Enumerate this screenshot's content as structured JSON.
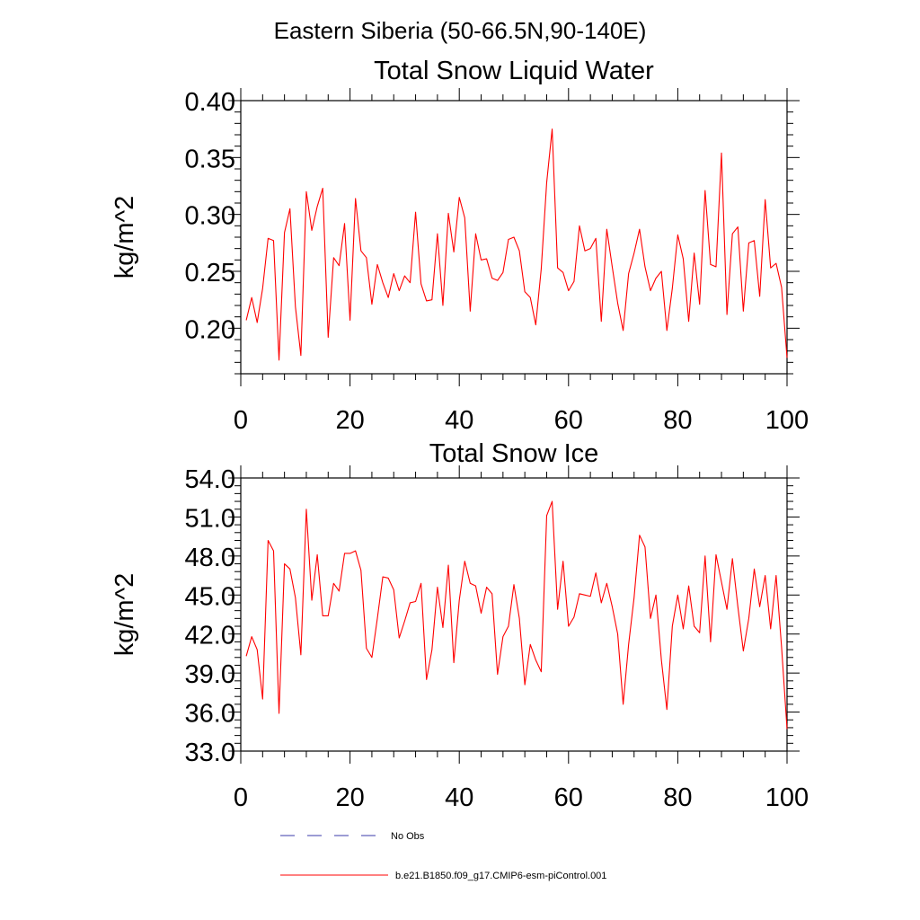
{
  "page_title": "Eastern Siberia (50-66.5N,90-140E)",
  "colors": {
    "model": "#ff0000",
    "obs": "#3a3aaa",
    "axis": "#000000"
  },
  "legend": {
    "obs_label": "No Obs",
    "model_label": "b.e21.B1850.f09_g17.CMIP6-esm-piControl.001"
  },
  "chart_data": [
    {
      "type": "line",
      "title": "Total Snow Liquid Water",
      "xlabel": "",
      "ylabel": "kg/m^2",
      "xlim": [
        0,
        100
      ],
      "ylim": [
        0.16,
        0.4
      ],
      "xticks": [
        0,
        20,
        40,
        60,
        80,
        100
      ],
      "xtick_labels": [
        "0",
        "20",
        "40",
        "60",
        "80",
        "100"
      ],
      "yticks": [
        0.2,
        0.25,
        0.3,
        0.35,
        0.4
      ],
      "ytick_labels": [
        "0.20",
        "0.25",
        "0.30",
        "0.35",
        "0.40"
      ],
      "series": [
        {
          "name": "b.e21.B1850.f09_g17.CMIP6-esm-piControl.001",
          "x_start": 1,
          "values": [
            0.207,
            0.227,
            0.205,
            0.235,
            0.279,
            0.277,
            0.172,
            0.284,
            0.305,
            0.219,
            0.176,
            0.32,
            0.286,
            0.307,
            0.323,
            0.192,
            0.262,
            0.255,
            0.292,
            0.207,
            0.314,
            0.268,
            0.262,
            0.221,
            0.256,
            0.24,
            0.227,
            0.248,
            0.233,
            0.246,
            0.24,
            0.302,
            0.239,
            0.224,
            0.225,
            0.283,
            0.22,
            0.301,
            0.267,
            0.315,
            0.297,
            0.215,
            0.283,
            0.26,
            0.261,
            0.244,
            0.242,
            0.249,
            0.278,
            0.28,
            0.268,
            0.232,
            0.227,
            0.203,
            0.252,
            0.328,
            0.375,
            0.253,
            0.249,
            0.233,
            0.241,
            0.29,
            0.268,
            0.27,
            0.279,
            0.206,
            0.287,
            0.254,
            0.222,
            0.198,
            0.248,
            0.266,
            0.287,
            0.254,
            0.233,
            0.244,
            0.25,
            0.198,
            0.235,
            0.282,
            0.261,
            0.206,
            0.266,
            0.221,
            0.321,
            0.256,
            0.254,
            0.354,
            0.212,
            0.283,
            0.289,
            0.215,
            0.275,
            0.277,
            0.228,
            0.313,
            0.253,
            0.257,
            0.236,
            0.174
          ]
        }
      ]
    },
    {
      "type": "line",
      "title": "Total Snow Ice",
      "xlabel": "",
      "ylabel": "kg/m^2",
      "xlim": [
        0,
        100
      ],
      "ylim": [
        33.0,
        54.0
      ],
      "xticks": [
        0,
        20,
        40,
        60,
        80,
        100
      ],
      "xtick_labels": [
        "0",
        "20",
        "40",
        "60",
        "80",
        "100"
      ],
      "yticks": [
        33.0,
        36.0,
        39.0,
        42.0,
        45.0,
        48.0,
        51.0,
        54.0
      ],
      "ytick_labels": [
        "33.0",
        "36.0",
        "39.0",
        "42.0",
        "45.0",
        "48.0",
        "51.0",
        "54.0"
      ],
      "series": [
        {
          "name": "b.e21.B1850.f09_g17.CMIP6-esm-piControl.001",
          "x_start": 1,
          "values": [
            40.3,
            41.8,
            40.8,
            37.0,
            49.2,
            48.4,
            35.9,
            47.4,
            47.0,
            44.8,
            40.4,
            51.6,
            44.6,
            48.1,
            43.4,
            43.4,
            45.9,
            45.3,
            48.2,
            48.2,
            48.4,
            46.9,
            40.9,
            40.2,
            43.2,
            46.4,
            46.3,
            45.4,
            41.7,
            43.0,
            44.4,
            44.5,
            45.9,
            38.5,
            40.8,
            45.6,
            42.5,
            47.3,
            39.8,
            44.6,
            47.6,
            45.9,
            45.7,
            43.6,
            45.6,
            45.1,
            38.9,
            41.8,
            42.6,
            45.8,
            43.2,
            38.1,
            41.2,
            40.0,
            39.1,
            51.1,
            52.2,
            43.9,
            47.6,
            42.6,
            43.3,
            45.1,
            45.0,
            44.9,
            46.7,
            44.4,
            45.9,
            44.1,
            42.0,
            36.6,
            41.2,
            44.8,
            49.6,
            48.7,
            43.2,
            45.0,
            40.0,
            36.2,
            42.6,
            45.0,
            42.4,
            45.7,
            42.6,
            42.1,
            48.0,
            41.4,
            48.1,
            46.0,
            43.9,
            47.8,
            44.1,
            40.7,
            43.2,
            47.0,
            44.1,
            46.5,
            42.4,
            46.5,
            41.0,
            34.7
          ]
        }
      ]
    }
  ]
}
